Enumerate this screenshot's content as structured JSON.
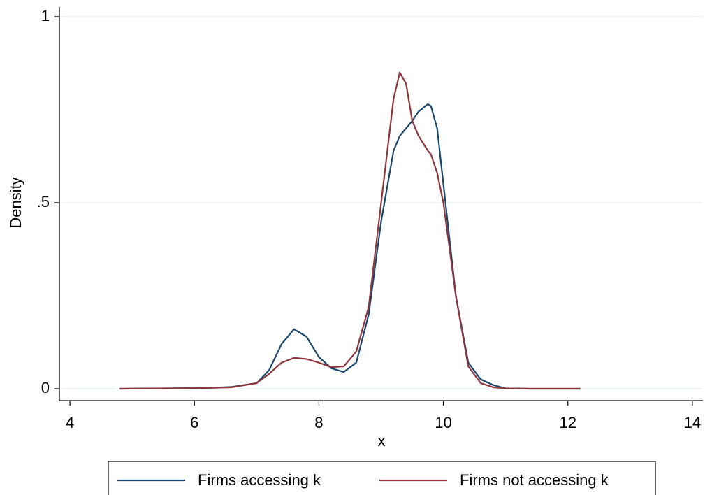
{
  "chart_data": {
    "type": "line",
    "x_label": "x",
    "y_label": "Density",
    "x": [
      4.8,
      5.6,
      6.2,
      6.6,
      7.0,
      7.2,
      7.4,
      7.6,
      7.8,
      8.0,
      8.2,
      8.4,
      8.6,
      8.8,
      9.0,
      9.2,
      9.3,
      9.4,
      9.5,
      9.6,
      9.75,
      9.8,
      9.9,
      10.0,
      10.2,
      10.4,
      10.6,
      10.8,
      11.0,
      11.4,
      12.2
    ],
    "series": [
      {
        "name": "Firms accessing k",
        "color": "#1a476f",
        "values": [
          0,
          0.001,
          0.002,
          0.005,
          0.015,
          0.05,
          0.12,
          0.16,
          0.14,
          0.085,
          0.055,
          0.045,
          0.07,
          0.2,
          0.45,
          0.64,
          0.68,
          0.7,
          0.72,
          0.745,
          0.765,
          0.76,
          0.7,
          0.55,
          0.25,
          0.07,
          0.025,
          0.01,
          0.001,
          0,
          0
        ]
      },
      {
        "name": "Firms not accessing k",
        "color": "#90353b",
        "values": [
          0,
          0.001,
          0.002,
          0.004,
          0.015,
          0.04,
          0.07,
          0.083,
          0.08,
          0.07,
          0.058,
          0.06,
          0.1,
          0.22,
          0.5,
          0.78,
          0.85,
          0.82,
          0.72,
          0.68,
          0.64,
          0.63,
          0.58,
          0.5,
          0.25,
          0.06,
          0.015,
          0.004,
          0.001,
          0,
          0
        ]
      }
    ],
    "xlim": [
      3.83,
      14.17
    ],
    "xticks": [
      4,
      6,
      8,
      10,
      12,
      14
    ],
    "ylim": [
      -0.032,
      1.03
    ],
    "yticks": [
      0,
      {
        "value": 0.5,
        "label": ".5"
      },
      1
    ],
    "grid": true,
    "legend": "bottom"
  }
}
